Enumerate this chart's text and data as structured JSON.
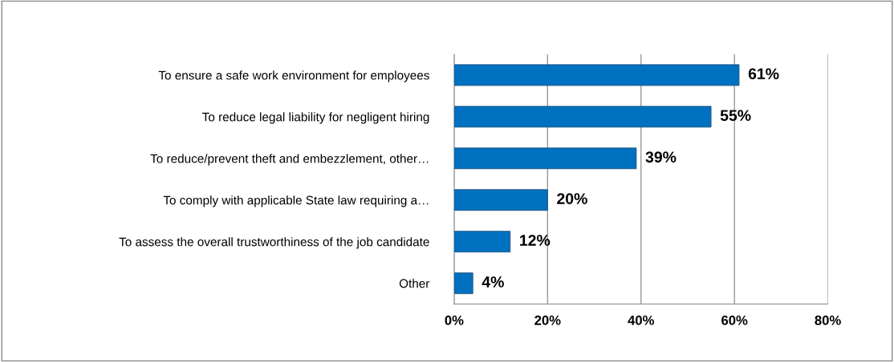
{
  "chart_data": {
    "type": "bar",
    "orientation": "horizontal",
    "categories": [
      "To ensure a safe work environment for employees",
      "To reduce legal liability for negligent hiring",
      "To reduce/prevent theft and embezzlement, other…",
      "To comply with applicable State law requiring a…",
      "To assess the overall trustworthiness of the job candidate",
      "Other"
    ],
    "values": [
      61,
      55,
      39,
      20,
      12,
      4
    ],
    "value_labels": [
      "61%",
      "55%",
      "39%",
      "20%",
      "12%",
      "4%"
    ],
    "color": "#0070c0",
    "xlim": [
      0,
      80
    ],
    "xticks": [
      {
        "value": 0,
        "label": "0%"
      },
      {
        "value": 20,
        "label": "20%"
      },
      {
        "value": 40,
        "label": "40%"
      },
      {
        "value": 60,
        "label": "60%"
      },
      {
        "value": 80,
        "label": "80%"
      }
    ],
    "grid": "x",
    "legend": false
  }
}
